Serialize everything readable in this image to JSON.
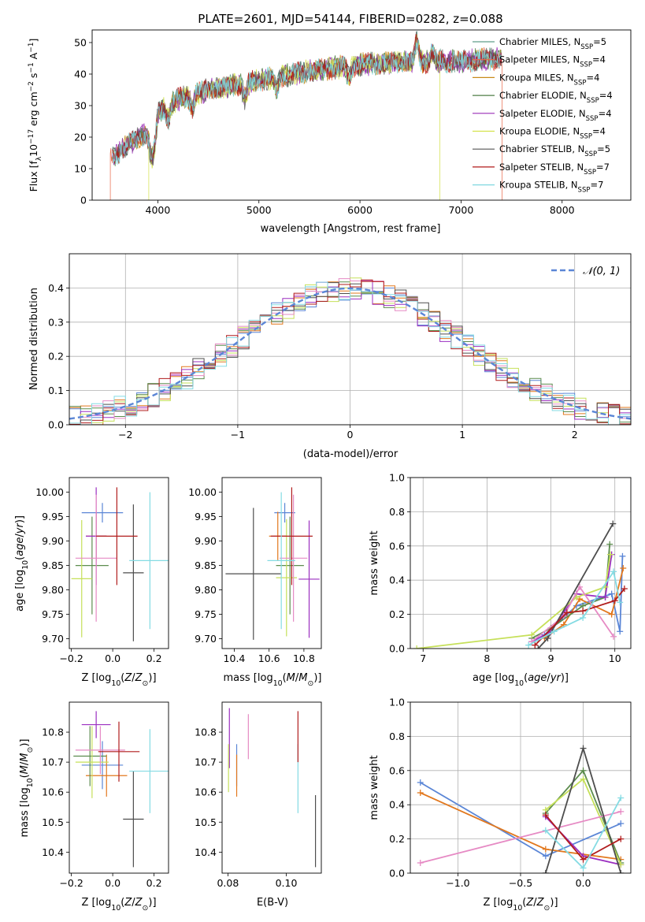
{
  "title": "PLATE=2601, MJD=54144, FIBERID=0282, z=0.088",
  "colors": {
    "Chabrier MILES": "#5f9e8a",
    "Salpeter MILES": "#e9694d",
    "Kroupa MILES": "#c88a1a",
    "Chabrier ELODIE": "#4f7f46",
    "Salpeter ELODIE": "#9a2db6",
    "Kroupa ELODIE": "#d4e24a",
    "Chabrier STELIB": "#555555",
    "Salpeter STELIB": "#b01818",
    "Kroupa STELIB": "#80d7df",
    "blue": "#5b86d6",
    "orange": "#e2781e",
    "green": "#5c8c4e",
    "purple": "#9b2fc0",
    "lime": "#c6e05a",
    "pink": "#e68ac4",
    "gray": "#4d4d4d",
    "red": "#b11d1d",
    "cyan": "#84dbe3"
  },
  "chart_data": [
    {
      "id": "spectrum",
      "type": "line",
      "title": "PLATE=2601, MJD=54144, FIBERID=0282, z=0.088",
      "xlabel": "wavelength [Angstrom, rest frame]",
      "ylabel": "Flux [f_λ10^-17 erg cm^-2 s^-1 A^-1]",
      "xlim": [
        3350,
        8680
      ],
      "ylim": [
        0,
        54
      ],
      "xticks": [
        4000,
        5000,
        6000,
        7000,
        8000
      ],
      "yticks": [
        0,
        10,
        20,
        30,
        40,
        50
      ],
      "legend_position": "top-right",
      "continuum": {
        "x": [
          3550,
          3600,
          3800,
          3950,
          4000,
          4200,
          4500,
          5000,
          5500,
          6000,
          6500,
          7000,
          7400
        ],
        "y": [
          13,
          15,
          20,
          22,
          28,
          32,
          35,
          38,
          41,
          43,
          44,
          44,
          45
        ]
      },
      "series": [
        {
          "name": "Chabrier MILES, N_SSP=5",
          "label_main": "Chabrier MILES, N",
          "label_sub": "SSP",
          "label_tail": "=5",
          "color": "#5f9e8a"
        },
        {
          "name": "Salpeter MILES, N_SSP=4",
          "label_main": "Salpeter MILES, N",
          "label_sub": "SSP",
          "label_tail": "=4",
          "color": "#e9694d",
          "cutoff": [
            3530,
            7405
          ]
        },
        {
          "name": "Kroupa MILES, N_SSP=4",
          "label_main": "Kroupa MILES, N",
          "label_sub": "SSP",
          "label_tail": "=4",
          "color": "#c88a1a"
        },
        {
          "name": "Chabrier ELODIE, N_SSP=4",
          "label_main": "Chabrier ELODIE, N",
          "label_sub": "SSP",
          "label_tail": "=4",
          "color": "#4f7f46"
        },
        {
          "name": "Salpeter ELODIE, N_SSP=4",
          "label_main": "Salpeter ELODIE, N",
          "label_sub": "SSP",
          "label_tail": "=4",
          "color": "#9a2db6"
        },
        {
          "name": "Kroupa ELODIE, N_SSP=4",
          "label_main": "Kroupa ELODIE, N",
          "label_sub": "SSP",
          "label_tail": "=4",
          "color": "#d4e24a",
          "cutoff": [
            3910,
            6790
          ]
        },
        {
          "name": "Chabrier STELIB, N_SSP=5",
          "label_main": "Chabrier STELIB, N",
          "label_sub": "SSP",
          "label_tail": "=5",
          "color": "#555555"
        },
        {
          "name": "Salpeter STELIB, N_SSP=7",
          "label_main": "Salpeter STELIB, N",
          "label_sub": "SSP",
          "label_tail": "=7",
          "color": "#b01818"
        },
        {
          "name": "Kroupa STELIB, N_SSP=7",
          "label_main": "Kroupa STELIB, N",
          "label_sub": "SSP",
          "label_tail": "=7",
          "color": "#80d7df"
        }
      ]
    },
    {
      "id": "residuals",
      "type": "line",
      "xlabel": "(data-model)/error",
      "ylabel": "Normed distribution",
      "xlim": [
        -2.5,
        2.5
      ],
      "ylim": [
        0,
        0.5
      ],
      "xticks": [
        -2,
        -1,
        0,
        1,
        2
      ],
      "yticks": [
        0.0,
        0.1,
        0.2,
        0.3,
        0.4
      ],
      "grid": true,
      "legend_position": "top-right",
      "reference": {
        "name": "N(0,1)",
        "label": "𝒩(0, 1)",
        "color": "#5b86d6",
        "style": "dashed"
      },
      "bin_width": 0.1,
      "hist_colors": [
        "#5b86d6",
        "#e2781e",
        "#5c8c4e",
        "#9b2fc0",
        "#c6e05a",
        "#e68ac4",
        "#4d4d4d",
        "#b11d1d",
        "#84dbe3"
      ]
    },
    {
      "id": "age-vs-Z",
      "type": "scatter",
      "xlabel": "Z [log10(Z/Z⊙)]",
      "ylabel": "age  [log10(age/yr)]",
      "xlim": [
        -0.21,
        0.27
      ],
      "ylim": [
        9.68,
        10.03
      ],
      "xticks": [
        -0.2,
        0.0,
        0.2
      ],
      "yticks": [
        9.7,
        9.75,
        9.8,
        9.85,
        9.9,
        9.95,
        10.0
      ],
      "points": [
        {
          "x": -0.05,
          "y": 9.958,
          "xerr": 0.1,
          "yerr": 0.02,
          "color": "#5b86d6"
        },
        {
          "x": -0.08,
          "y": 9.91,
          "xerr": 0.05,
          "yerr": 0.05,
          "color": "#e2781e"
        },
        {
          "x": -0.1,
          "y": 9.85,
          "xerr": 0.08,
          "yerr": 0.1,
          "color": "#5c8c4e"
        },
        {
          "x": -0.08,
          "y": 9.91,
          "xerr": 0.05,
          "yerr": 0.1,
          "color": "#9b2fc0"
        },
        {
          "x": -0.15,
          "y": 9.823,
          "xerr": 0.05,
          "yerr": 0.12,
          "color": "#c6e05a"
        },
        {
          "x": -0.08,
          "y": 9.865,
          "xerr": 0.1,
          "yerr": 0.13,
          "color": "#e68ac4"
        },
        {
          "x": 0.1,
          "y": 9.835,
          "xerr": 0.05,
          "yerr": 0.14,
          "color": "#4d4d4d"
        },
        {
          "x": 0.02,
          "y": 9.91,
          "xerr": 0.1,
          "yerr": 0.1,
          "color": "#b11d1d"
        },
        {
          "x": 0.18,
          "y": 9.86,
          "xerr": 0.1,
          "yerr": 0.14,
          "color": "#84dbe3"
        }
      ]
    },
    {
      "id": "age-vs-mass",
      "type": "scatter",
      "xlabel": "mass [log10(M/M⊙)]",
      "ylabel": "",
      "xlim": [
        10.33,
        10.9
      ],
      "ylim": [
        9.68,
        10.03
      ],
      "xticks": [
        10.4,
        10.6,
        10.8
      ],
      "yticks": [
        9.7,
        9.75,
        9.8,
        9.85,
        9.9,
        9.95,
        10.0
      ],
      "points": [
        {
          "x": 10.69,
          "y": 9.958,
          "xerr": 0.06,
          "yerr": 0.02,
          "color": "#5b86d6"
        },
        {
          "x": 10.65,
          "y": 9.91,
          "xerr": 0.05,
          "yerr": 0.05,
          "color": "#e2781e"
        },
        {
          "x": 10.72,
          "y": 9.85,
          "xerr": 0.08,
          "yerr": 0.1,
          "color": "#5c8c4e"
        },
        {
          "x": 10.83,
          "y": 9.822,
          "xerr": 0.06,
          "yerr": 0.12,
          "color": "#9b2fc0"
        },
        {
          "x": 10.7,
          "y": 9.825,
          "xerr": 0.06,
          "yerr": 0.12,
          "color": "#c6e05a"
        },
        {
          "x": 10.74,
          "y": 9.865,
          "xerr": 0.08,
          "yerr": 0.13,
          "color": "#e68ac4"
        },
        {
          "x": 10.51,
          "y": 9.833,
          "xerr": 0.16,
          "yerr": 0.135,
          "color": "#4d4d4d"
        },
        {
          "x": 10.73,
          "y": 9.91,
          "xerr": 0.12,
          "yerr": 0.1,
          "color": "#b11d1d"
        },
        {
          "x": 10.67,
          "y": 9.86,
          "xerr": 0.08,
          "yerr": 0.14,
          "color": "#84dbe3"
        }
      ]
    },
    {
      "id": "massweight-vs-age",
      "type": "line",
      "xlabel": "age  [log10(age/yr)]",
      "ylabel": "mass weight",
      "xlim": [
        6.8,
        10.25
      ],
      "ylim": [
        0,
        1
      ],
      "xticks": [
        7,
        8,
        9,
        10
      ],
      "yticks": [
        0.0,
        0.2,
        0.4,
        0.6,
        0.8,
        1.0
      ],
      "grid": true,
      "series": [
        {
          "color": "#5b86d6",
          "x": [
            8.9,
            9.4,
            9.95,
            10.08,
            10.12
          ],
          "y": [
            0.08,
            0.25,
            0.32,
            0.1,
            0.54
          ]
        },
        {
          "color": "#e2781e",
          "x": [
            8.9,
            9.2,
            9.45,
            9.95,
            10.13
          ],
          "y": [
            0.06,
            0.14,
            0.29,
            0.2,
            0.47
          ]
        },
        {
          "color": "#5c8c4e",
          "x": [
            8.7,
            9.0,
            9.5,
            9.85,
            9.92
          ],
          "y": [
            0.06,
            0.12,
            0.25,
            0.3,
            0.61
          ]
        },
        {
          "color": "#9b2fc0",
          "x": [
            8.7,
            9.0,
            9.4,
            9.85,
            9.95
          ],
          "y": [
            0.04,
            0.1,
            0.32,
            0.3,
            0.55
          ]
        },
        {
          "color": "#c6e05a",
          "x": [
            6.9,
            8.7,
            9.4,
            9.85,
            9.93
          ],
          "y": [
            0.0,
            0.08,
            0.3,
            0.36,
            0.55
          ]
        },
        {
          "color": "#e68ac4",
          "x": [
            8.7,
            9.2,
            9.45,
            9.98
          ],
          "y": [
            0.04,
            0.19,
            0.36,
            0.07
          ]
        },
        {
          "color": "#4d4d4d",
          "x": [
            8.8,
            8.95,
            9.97
          ],
          "y": [
            0.0,
            0.06,
            0.73
          ]
        },
        {
          "color": "#b11d1d",
          "x": [
            8.75,
            9.25,
            9.5,
            10.0,
            10.15
          ],
          "y": [
            0.02,
            0.21,
            0.22,
            0.28,
            0.35
          ]
        },
        {
          "color": "#84dbe3",
          "x": [
            8.65,
            9.05,
            9.5,
            9.98,
            10.08
          ],
          "y": [
            0.02,
            0.1,
            0.18,
            0.45,
            0.27
          ]
        }
      ]
    },
    {
      "id": "mass-vs-Z",
      "type": "scatter",
      "xlabel": "Z [log10(Z/Z⊙)]",
      "ylabel": "mass [log10(M/M⊙)]",
      "xlim": [
        -0.21,
        0.27
      ],
      "ylim": [
        10.33,
        10.9
      ],
      "xticks": [
        -0.2,
        0.0,
        0.2
      ],
      "yticks": [
        10.4,
        10.5,
        10.6,
        10.7,
        10.8
      ],
      "points": [
        {
          "x": -0.05,
          "y": 10.69,
          "xerr": 0.1,
          "yerr": 0.08,
          "color": "#5b86d6"
        },
        {
          "x": -0.03,
          "y": 10.655,
          "xerr": 0.1,
          "yerr": 0.07,
          "color": "#e2781e"
        },
        {
          "x": -0.11,
          "y": 10.72,
          "xerr": 0.08,
          "yerr": 0.1,
          "color": "#5c8c4e"
        },
        {
          "x": -0.08,
          "y": 10.825,
          "xerr": 0.07,
          "yerr": 0.045,
          "color": "#9b2fc0"
        },
        {
          "x": -0.1,
          "y": 10.7,
          "xerr": 0.08,
          "yerr": 0.12,
          "color": "#c6e05a"
        },
        {
          "x": -0.06,
          "y": 10.74,
          "xerr": 0.12,
          "yerr": 0.08,
          "color": "#e68ac4"
        },
        {
          "x": 0.1,
          "y": 10.51,
          "xerr": 0.05,
          "yerr": 0.16,
          "color": "#4d4d4d"
        },
        {
          "x": 0.03,
          "y": 10.735,
          "xerr": 0.1,
          "yerr": 0.1,
          "color": "#b11d1d"
        },
        {
          "x": 0.18,
          "y": 10.67,
          "xerr": 0.1,
          "yerr": 0.14,
          "color": "#84dbe3"
        }
      ]
    },
    {
      "id": "mass-vs-ebv",
      "type": "scatter",
      "xlabel": "E(B-V)",
      "ylabel": "",
      "xlim": [
        0.078,
        0.112
      ],
      "ylim": [
        10.33,
        10.9
      ],
      "xticks": [
        0.08,
        0.1
      ],
      "yticks": [
        10.4,
        10.5,
        10.6,
        10.7,
        10.8
      ],
      "points": [
        {
          "x": 0.0805,
          "y": 10.78,
          "xerr": 0.0,
          "yerr": 0.1,
          "color": "#9b2fc0"
        },
        {
          "x": 0.0802,
          "y": 10.68,
          "xerr": 0.0,
          "yerr": 0.08,
          "color": "#c6e05a"
        },
        {
          "x": 0.083,
          "y": 10.69,
          "xerr": 0.0,
          "yerr": 0.07,
          "color": "#5b86d6"
        },
        {
          "x": 0.083,
          "y": 10.655,
          "xerr": 0.0,
          "yerr": 0.07,
          "color": "#e2781e"
        },
        {
          "x": 0.087,
          "y": 10.785,
          "xerr": 0.0,
          "yerr": 0.075,
          "color": "#e68ac4"
        },
        {
          "x": 0.104,
          "y": 10.645,
          "xerr": 0.0,
          "yerr": 0.115,
          "color": "#84dbe3"
        },
        {
          "x": 0.104,
          "y": 10.785,
          "xerr": 0.0,
          "yerr": 0.085,
          "color": "#b11d1d"
        },
        {
          "x": 0.11,
          "y": 10.47,
          "xerr": 0.0,
          "yerr": 0.12,
          "color": "#4d4d4d"
        }
      ]
    },
    {
      "id": "massweight-vs-Z",
      "type": "line",
      "xlabel": "Z [log10(Z/Z⊙)]",
      "ylabel": "mass weight",
      "xlim": [
        -1.38,
        0.38
      ],
      "ylim": [
        0,
        1
      ],
      "xticks": [
        -1.0,
        -0.5,
        0.0
      ],
      "yticks": [
        0.0,
        0.2,
        0.4,
        0.6,
        0.8,
        1.0
      ],
      "grid": true,
      "series": [
        {
          "color": "#5b86d6",
          "x": [
            -1.3,
            -0.3,
            0.3
          ],
          "y": [
            0.53,
            0.1,
            0.29
          ]
        },
        {
          "color": "#e2781e",
          "x": [
            -1.3,
            -0.3,
            0.3
          ],
          "y": [
            0.47,
            0.14,
            0.08
          ]
        },
        {
          "color": "#5c8c4e",
          "x": [
            -0.3,
            0.0,
            0.3
          ],
          "y": [
            0.35,
            0.6,
            0.06
          ]
        },
        {
          "color": "#9b2fc0",
          "x": [
            -0.3,
            0.0,
            0.3
          ],
          "y": [
            0.33,
            0.1,
            0.05
          ]
        },
        {
          "color": "#c6e05a",
          "x": [
            -0.3,
            0.0,
            0.3
          ],
          "y": [
            0.37,
            0.55,
            0.05
          ]
        },
        {
          "color": "#e68ac4",
          "x": [
            -1.3,
            0.3
          ],
          "y": [
            0.06,
            0.36
          ]
        },
        {
          "color": "#4d4d4d",
          "x": [
            -0.3,
            0.0,
            0.3
          ],
          "y": [
            0.0,
            0.73,
            0.0
          ]
        },
        {
          "color": "#b11d1d",
          "x": [
            -0.3,
            0.0,
            0.3
          ],
          "y": [
            0.34,
            0.08,
            0.2
          ]
        },
        {
          "color": "#84dbe3",
          "x": [
            -0.3,
            0.0,
            0.3
          ],
          "y": [
            0.25,
            0.03,
            0.44
          ]
        }
      ]
    }
  ]
}
